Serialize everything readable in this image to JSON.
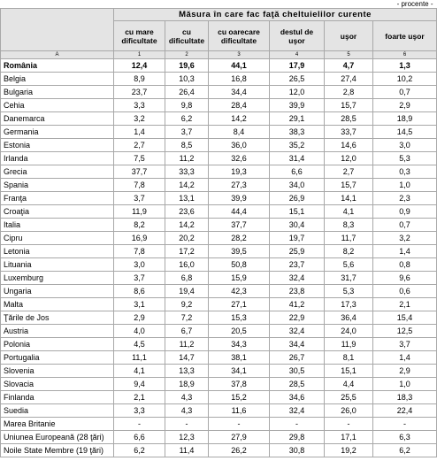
{
  "note": "- procente -",
  "table": {
    "group_header": "Măsura în care fac faţă cheltuielilor curente",
    "columns": [
      "cu mare dificultate",
      "cu dificultate",
      "cu oarecare dificultate",
      "destul de uşor",
      "uşor",
      "foarte uşor"
    ],
    "column_numbers": [
      "A",
      "1",
      "2",
      "3",
      "4",
      "5",
      "6"
    ],
    "rows": [
      [
        "România",
        "12,4",
        "19,6",
        "44,1",
        "17,9",
        "4,7",
        "1,3"
      ],
      [
        "Belgia",
        "8,9",
        "10,3",
        "16,8",
        "26,5",
        "27,4",
        "10,2"
      ],
      [
        "Bulgaria",
        "23,7",
        "26,4",
        "34,4",
        "12,0",
        "2,8",
        "0,7"
      ],
      [
        "Cehia",
        "3,3",
        "9,8",
        "28,4",
        "39,9",
        "15,7",
        "2,9"
      ],
      [
        "Danemarca",
        "3,2",
        "6,2",
        "14,2",
        "29,1",
        "28,5",
        "18,9"
      ],
      [
        "Germania",
        "1,4",
        "3,7",
        "8,4",
        "38,3",
        "33,7",
        "14,5"
      ],
      [
        "Estonia",
        "2,7",
        "8,5",
        "36,0",
        "35,2",
        "14,6",
        "3,0"
      ],
      [
        "Irlanda",
        "7,5",
        "11,2",
        "32,6",
        "31,4",
        "12,0",
        "5,3"
      ],
      [
        "Grecia",
        "37,7",
        "33,3",
        "19,3",
        "6,6",
        "2,7",
        "0,3"
      ],
      [
        "Spania",
        "7,8",
        "14,2",
        "27,3",
        "34,0",
        "15,7",
        "1,0"
      ],
      [
        "Franţa",
        "3,7",
        "13,1",
        "39,9",
        "26,9",
        "14,1",
        "2,3"
      ],
      [
        "Croaţia",
        "11,9",
        "23,6",
        "44,4",
        "15,1",
        "4,1",
        "0,9"
      ],
      [
        "Italia",
        "8,2",
        "14,2",
        "37,7",
        "30,4",
        "8,3",
        "0,7"
      ],
      [
        "Cipru",
        "16,9",
        "20,2",
        "28,2",
        "19,7",
        "11,7",
        "3,2"
      ],
      [
        "Letonia",
        "7,8",
        "17,2",
        "39,5",
        "25,9",
        "8,2",
        "1,4"
      ],
      [
        "Lituania",
        "3,0",
        "16,0",
        "50,8",
        "23,7",
        "5,6",
        "0,8"
      ],
      [
        "Luxemburg",
        "3,7",
        "6,8",
        "15,9",
        "32,4",
        "31,7",
        "9,6"
      ],
      [
        "Ungaria",
        "8,6",
        "19,4",
        "42,3",
        "23,8",
        "5,3",
        "0,6"
      ],
      [
        "Malta",
        "3,1",
        "9,2",
        "27,1",
        "41,2",
        "17,3",
        "2,1"
      ],
      [
        "Ţările de Jos",
        "2,9",
        "7,2",
        "15,3",
        "22,9",
        "36,4",
        "15,4"
      ],
      [
        "Austria",
        "4,0",
        "6,7",
        "20,5",
        "32,4",
        "24,0",
        "12,5"
      ],
      [
        "Polonia",
        "4,5",
        "11,2",
        "34,3",
        "34,4",
        "11,9",
        "3,7"
      ],
      [
        "Portugalia",
        "11,1",
        "14,7",
        "38,1",
        "26,7",
        "8,1",
        "1,4"
      ],
      [
        "Slovenia",
        "4,1",
        "13,3",
        "34,1",
        "30,5",
        "15,1",
        "2,9"
      ],
      [
        "Slovacia",
        "9,4",
        "18,9",
        "37,8",
        "28,5",
        "4,4",
        "1,0"
      ],
      [
        "Finlanda",
        "2,1",
        "4,3",
        "15,2",
        "34,6",
        "25,5",
        "18,3"
      ],
      [
        "Suedia",
        "3,3",
        "4,3",
        "11,6",
        "32,4",
        "26,0",
        "22,4"
      ],
      [
        "Marea Britanie",
        "-",
        "-",
        "-",
        "-",
        "-",
        "-"
      ],
      [
        "Uniunea Europeană (28 ţări)",
        "6,6",
        "12,3",
        "27,9",
        "29,8",
        "17,1",
        "6,3"
      ],
      [
        "Noile State Membre (19 ţări)",
        "6,2",
        "11,4",
        "26,2",
        "30,8",
        "19,2",
        "6,2"
      ]
    ]
  }
}
